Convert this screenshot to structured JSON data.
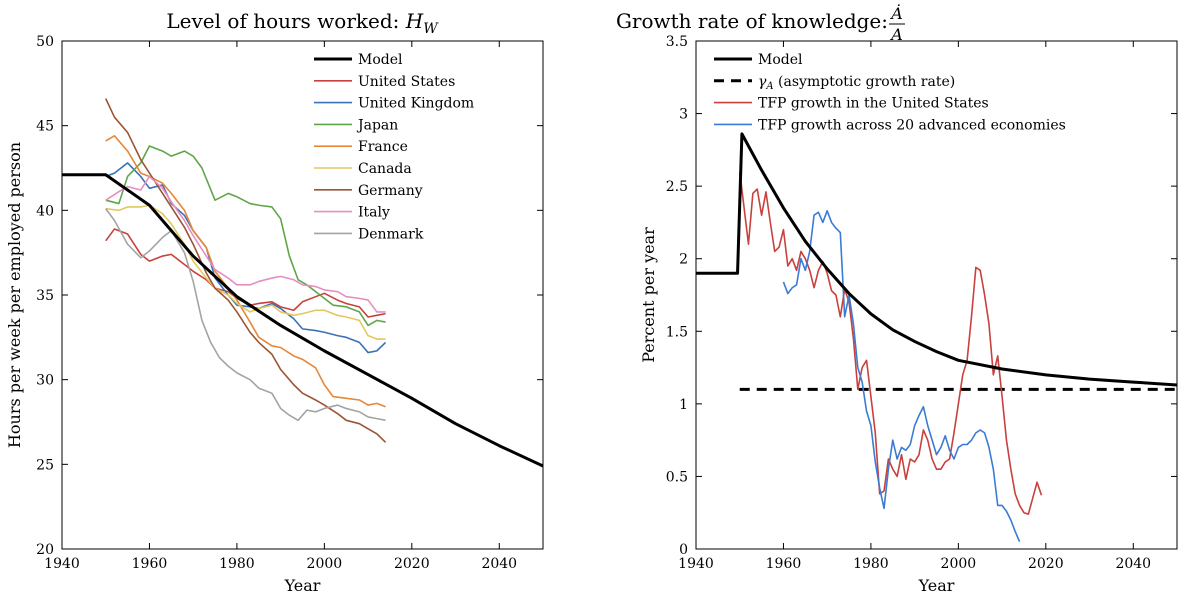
{
  "chart_data": [
    {
      "type": "line",
      "title": "Level of hours worked: ",
      "title_math": "H",
      "title_math_sub": "W",
      "xlabel": "Year",
      "ylabel": "Hours per week per employed person",
      "xlim": [
        1940,
        2050
      ],
      "ylim": [
        20,
        50
      ],
      "xticks": [
        "1940",
        "1960",
        "1980",
        "2000",
        "2020",
        "2040"
      ],
      "yticks": [
        "20",
        "25",
        "30",
        "35",
        "40",
        "45",
        "50"
      ],
      "grid": false,
      "legend_position": "top-right",
      "series": [
        {
          "name": "Model",
          "color": "#000000",
          "width": "thick",
          "x": [
            1940,
            1950,
            1960,
            1970,
            1980,
            1990,
            2000,
            2010,
            2020,
            2030,
            2040,
            2050
          ],
          "y": [
            42.1,
            42.1,
            40.3,
            37.3,
            34.9,
            33.2,
            31.7,
            30.3,
            28.9,
            27.4,
            26.1,
            24.9
          ]
        },
        {
          "name": "United States",
          "color": "#c8413c",
          "x": [
            1950,
            1952,
            1955,
            1958,
            1960,
            1963,
            1965,
            1968,
            1970,
            1973,
            1975,
            1978,
            1980,
            1983,
            1985,
            1988,
            1990,
            1993,
            1995,
            1998,
            2000,
            2003,
            2005,
            2008,
            2010,
            2012,
            2014
          ],
          "y": [
            38.2,
            38.9,
            38.6,
            37.4,
            37.0,
            37.3,
            37.4,
            36.8,
            36.4,
            35.9,
            35.4,
            35.2,
            34.8,
            34.4,
            34.5,
            34.6,
            34.3,
            34.1,
            34.6,
            34.9,
            35.1,
            34.7,
            34.5,
            34.3,
            33.7,
            33.8,
            33.9
          ]
        },
        {
          "name": "United Kingdom",
          "color": "#3a72b8",
          "x": [
            1950,
            1952,
            1955,
            1958,
            1960,
            1963,
            1965,
            1968,
            1970,
            1973,
            1975,
            1978,
            1980,
            1983,
            1985,
            1988,
            1990,
            1993,
            1995,
            1998,
            2000,
            2003,
            2005,
            2008,
            2010,
            2012,
            2014
          ],
          "y": [
            42.0,
            42.2,
            42.8,
            42.0,
            41.3,
            41.5,
            40.4,
            39.7,
            38.8,
            37.8,
            36.0,
            35.0,
            34.4,
            34.3,
            34.2,
            34.5,
            34.2,
            33.6,
            33.0,
            32.9,
            32.8,
            32.6,
            32.5,
            32.2,
            31.6,
            31.7,
            32.2
          ]
        },
        {
          "name": "Japan",
          "color": "#5fa54a",
          "x": [
            1950,
            1953,
            1955,
            1958,
            1960,
            1963,
            1965,
            1968,
            1970,
            1972,
            1975,
            1978,
            1980,
            1983,
            1985,
            1988,
            1990,
            1992,
            1994,
            1996,
            1998,
            2000,
            2002,
            2005,
            2008,
            2010,
            2012,
            2014
          ],
          "y": [
            40.6,
            40.4,
            42.0,
            42.8,
            43.8,
            43.5,
            43.2,
            43.5,
            43.2,
            42.5,
            40.6,
            41.0,
            40.8,
            40.4,
            40.3,
            40.2,
            39.5,
            37.3,
            35.9,
            35.6,
            35.2,
            34.8,
            34.4,
            34.3,
            34.0,
            33.2,
            33.5,
            33.4
          ]
        },
        {
          "name": "France",
          "color": "#e5883a",
          "x": [
            1950,
            1952,
            1955,
            1958,
            1960,
            1963,
            1965,
            1968,
            1970,
            1973,
            1975,
            1978,
            1980,
            1983,
            1985,
            1988,
            1990,
            1993,
            1995,
            1998,
            2000,
            2002,
            2005,
            2008,
            2010,
            2012,
            2014
          ],
          "y": [
            44.1,
            44.4,
            43.5,
            42.2,
            42.0,
            41.6,
            41.0,
            40.0,
            38.8,
            37.8,
            36.4,
            35.4,
            34.7,
            33.4,
            32.5,
            32.0,
            31.9,
            31.4,
            31.2,
            30.7,
            29.7,
            29.0,
            28.9,
            28.8,
            28.5,
            28.6,
            28.4
          ]
        },
        {
          "name": "Canada",
          "color": "#e3c75f",
          "x": [
            1950,
            1953,
            1955,
            1958,
            1960,
            1963,
            1965,
            1968,
            1970,
            1973,
            1975,
            1978,
            1980,
            1983,
            1985,
            1988,
            1990,
            1993,
            1995,
            1998,
            2000,
            2003,
            2005,
            2008,
            2010,
            2012,
            2014
          ],
          "y": [
            40.1,
            40.0,
            40.2,
            40.2,
            40.3,
            39.8,
            39.2,
            38.0,
            37.0,
            36.0,
            35.4,
            35.0,
            34.5,
            34.0,
            34.2,
            34.4,
            34.0,
            33.8,
            33.9,
            34.1,
            34.1,
            33.8,
            33.7,
            33.5,
            32.6,
            32.4,
            32.4
          ]
        },
        {
          "name": "Germany",
          "color": "#9b5434",
          "x": [
            1950,
            1952,
            1955,
            1958,
            1960,
            1963,
            1965,
            1968,
            1970,
            1973,
            1975,
            1978,
            1980,
            1983,
            1985,
            1988,
            1990,
            1993,
            1995,
            1998,
            2000,
            2003,
            2005,
            2008,
            2010,
            2012,
            2014
          ],
          "y": [
            46.6,
            45.5,
            44.6,
            43.0,
            42.2,
            41.0,
            40.2,
            39.0,
            38.0,
            36.3,
            35.4,
            34.7,
            34.0,
            32.8,
            32.2,
            31.5,
            30.6,
            29.7,
            29.2,
            28.8,
            28.5,
            28.0,
            27.6,
            27.4,
            27.1,
            26.8,
            26.3
          ]
        },
        {
          "name": "Italy",
          "color": "#e48fc3",
          "x": [
            1950,
            1953,
            1955,
            1958,
            1960,
            1963,
            1965,
            1968,
            1970,
            1973,
            1975,
            1978,
            1980,
            1983,
            1985,
            1988,
            1990,
            1993,
            1995,
            1998,
            2000,
            2003,
            2005,
            2008,
            2010,
            2012,
            2014
          ],
          "y": [
            40.6,
            41.1,
            41.4,
            41.2,
            42.0,
            41.3,
            40.5,
            39.4,
            38.5,
            37.3,
            36.5,
            36.0,
            35.6,
            35.6,
            35.8,
            36.0,
            36.1,
            35.9,
            35.6,
            35.5,
            35.3,
            35.2,
            34.9,
            34.8,
            34.7,
            34.0,
            34.0
          ]
        },
        {
          "name": "Denmark",
          "color": "#a4a4a4",
          "x": [
            1950,
            1952,
            1955,
            1958,
            1960,
            1963,
            1965,
            1968,
            1970,
            1972,
            1974,
            1976,
            1978,
            1980,
            1983,
            1985,
            1988,
            1990,
            1992,
            1994,
            1996,
            1998,
            2000,
            2003,
            2005,
            2008,
            2010,
            2012,
            2014
          ],
          "y": [
            40.1,
            39.4,
            38.0,
            37.2,
            37.6,
            38.4,
            38.8,
            37.5,
            35.8,
            33.5,
            32.2,
            31.3,
            30.8,
            30.4,
            30.0,
            29.5,
            29.2,
            28.3,
            27.9,
            27.6,
            28.2,
            28.1,
            28.3,
            28.5,
            28.3,
            28.1,
            27.8,
            27.7,
            27.6
          ]
        }
      ]
    },
    {
      "type": "line",
      "title": "Growth rate of knowledge: ",
      "title_math_num": "Ȧ",
      "title_math_den": "A",
      "xlabel": "Year",
      "ylabel": "Percent per year",
      "xlim": [
        1940,
        2050
      ],
      "ylim": [
        0,
        3.5
      ],
      "xticks": [
        "1940",
        "1960",
        "1980",
        "2000",
        "2020",
        "2040"
      ],
      "yticks": [
        "0",
        "0.5",
        "1",
        "1.5",
        "2",
        "2.5",
        "3",
        "3.5"
      ],
      "grid": false,
      "legend_position": "top-right",
      "series": [
        {
          "name": "Model",
          "color": "#000000",
          "width": "thick",
          "x": [
            1940,
            1949.5,
            1950.5,
            1955,
            1960,
            1965,
            1970,
            1975,
            1980,
            1985,
            1990,
            1995,
            2000,
            2010,
            2020,
            2030,
            2040,
            2050
          ],
          "y": [
            1.9,
            1.9,
            2.86,
            2.61,
            2.35,
            2.12,
            1.93,
            1.76,
            1.62,
            1.51,
            1.43,
            1.36,
            1.3,
            1.24,
            1.2,
            1.17,
            1.15,
            1.13
          ]
        },
        {
          "name": "γ",
          "name_sub": "A",
          "name_rest": " (asymptotic growth rate)",
          "color": "#000000",
          "dash": true,
          "x": [
            1950,
            2050
          ],
          "y": [
            1.1,
            1.1
          ]
        },
        {
          "name": "TFP growth in the United States",
          "color": "#c8413c",
          "x": [
            1950,
            1951,
            1952,
            1953,
            1954,
            1955,
            1956,
            1957,
            1958,
            1959,
            1960,
            1961,
            1962,
            1963,
            1964,
            1965,
            1966,
            1967,
            1968,
            1969,
            1970,
            1971,
            1972,
            1973,
            1974,
            1975,
            1976,
            1977,
            1978,
            1979,
            1980,
            1981,
            1982,
            1983,
            1984,
            1985,
            1986,
            1987,
            1988,
            1989,
            1990,
            1991,
            1992,
            1993,
            1994,
            1995,
            1996,
            1997,
            1998,
            1999,
            2000,
            2001,
            2002,
            2003,
            2004,
            2005,
            2006,
            2007,
            2008,
            2009,
            2010,
            2011,
            2012,
            2013,
            2014,
            2015,
            2016,
            2017,
            2018,
            2019
          ],
          "y": [
            2.6,
            2.35,
            2.1,
            2.45,
            2.48,
            2.3,
            2.46,
            2.25,
            2.05,
            2.08,
            2.2,
            1.95,
            2.0,
            1.92,
            2.05,
            2.0,
            1.92,
            1.8,
            1.92,
            1.98,
            1.9,
            1.78,
            1.75,
            1.6,
            1.79,
            1.7,
            1.45,
            1.1,
            1.25,
            1.3,
            1.05,
            0.8,
            0.38,
            0.4,
            0.62,
            0.55,
            0.5,
            0.65,
            0.48,
            0.62,
            0.6,
            0.65,
            0.82,
            0.75,
            0.62,
            0.55,
            0.55,
            0.6,
            0.62,
            0.8,
            1.0,
            1.2,
            1.3,
            1.6,
            1.94,
            1.92,
            1.75,
            1.55,
            1.2,
            1.33,
            1.05,
            0.75,
            0.55,
            0.38,
            0.3,
            0.25,
            0.24,
            0.35,
            0.46,
            0.37
          ]
        },
        {
          "name": "TFP growth across 20 advanced economies",
          "color": "#3a7bd5",
          "x": [
            1960,
            1961,
            1962,
            1963,
            1964,
            1965,
            1966,
            1967,
            1968,
            1969,
            1970,
            1971,
            1972,
            1973,
            1974,
            1975,
            1976,
            1977,
            1978,
            1979,
            1980,
            1981,
            1982,
            1983,
            1984,
            1985,
            1986,
            1987,
            1988,
            1989,
            1990,
            1991,
            1992,
            1993,
            1994,
            1995,
            1996,
            1997,
            1998,
            1999,
            2000,
            2001,
            2002,
            2003,
            2004,
            2005,
            2006,
            2007,
            2008,
            2009,
            2010,
            2011,
            2012,
            2013,
            2014
          ],
          "y": [
            1.84,
            1.76,
            1.8,
            1.82,
            2.0,
            1.92,
            2.05,
            2.3,
            2.32,
            2.25,
            2.33,
            2.25,
            2.21,
            2.18,
            1.6,
            1.75,
            1.55,
            1.25,
            1.15,
            0.95,
            0.85,
            0.6,
            0.42,
            0.28,
            0.55,
            0.75,
            0.62,
            0.7,
            0.68,
            0.72,
            0.85,
            0.92,
            0.98,
            0.85,
            0.75,
            0.65,
            0.7,
            0.78,
            0.68,
            0.62,
            0.7,
            0.72,
            0.72,
            0.75,
            0.8,
            0.82,
            0.8,
            0.7,
            0.55,
            0.3,
            0.3,
            0.26,
            0.2,
            0.12,
            0.05
          ]
        }
      ]
    }
  ]
}
